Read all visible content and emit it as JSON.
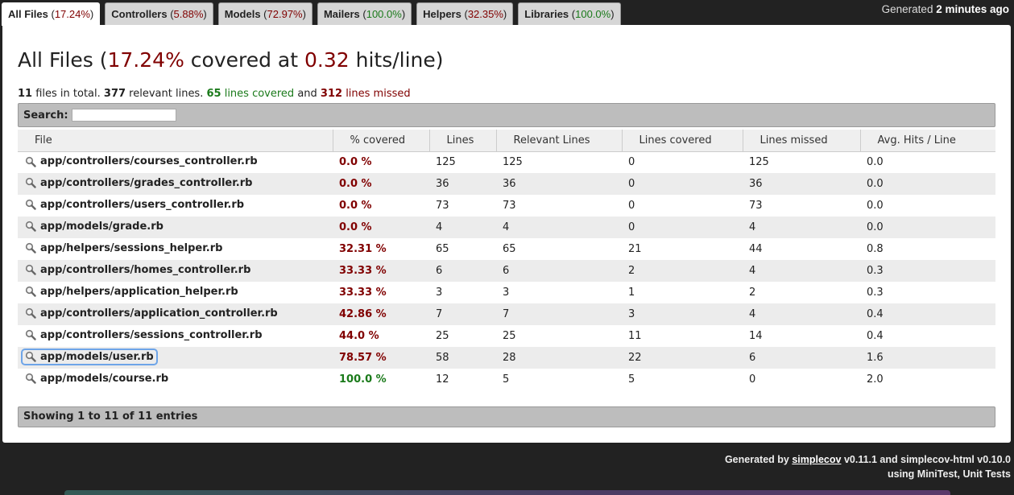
{
  "tabs": [
    {
      "label": "All Files",
      "pct": "17.24%",
      "status": "red",
      "active": true
    },
    {
      "label": "Controllers",
      "pct": "5.88%",
      "status": "red",
      "active": false
    },
    {
      "label": "Models",
      "pct": "72.97%",
      "status": "red",
      "active": false
    },
    {
      "label": "Mailers",
      "pct": "100.0%",
      "status": "green",
      "active": false
    },
    {
      "label": "Helpers",
      "pct": "32.35%",
      "status": "red",
      "active": false
    },
    {
      "label": "Libraries",
      "pct": "100.0%",
      "status": "green",
      "active": false
    }
  ],
  "generated_at": {
    "prefix": "Generated",
    "time": "2 minutes ago"
  },
  "title": {
    "prefix": "All Files (",
    "pct": "17.24%",
    "middle": " covered at ",
    "hits": "0.32",
    "suffix": " hits/line)"
  },
  "summary": {
    "files": "11",
    "files_text": " files in total. ",
    "relevant": "377",
    "relevant_text": " relevant lines. ",
    "covered": "65",
    "covered_text": " lines covered",
    "and_text": " and ",
    "missed": "312",
    "missed_text": " lines missed"
  },
  "search": {
    "label": "Search:",
    "value": ""
  },
  "table": {
    "headers": [
      "File",
      "% covered",
      "Lines",
      "Relevant Lines",
      "Lines covered",
      "Lines missed",
      "Avg. Hits / Line"
    ],
    "rows": [
      {
        "file": "app/controllers/courses_controller.rb",
        "pct": "0.0 %",
        "status": "red",
        "lines": "125",
        "relevant": "125",
        "covered": "0",
        "missed": "125",
        "avg": "0.0"
      },
      {
        "file": "app/controllers/grades_controller.rb",
        "pct": "0.0 %",
        "status": "red",
        "lines": "36",
        "relevant": "36",
        "covered": "0",
        "missed": "36",
        "avg": "0.0"
      },
      {
        "file": "app/controllers/users_controller.rb",
        "pct": "0.0 %",
        "status": "red",
        "lines": "73",
        "relevant": "73",
        "covered": "0",
        "missed": "73",
        "avg": "0.0"
      },
      {
        "file": "app/models/grade.rb",
        "pct": "0.0 %",
        "status": "red",
        "lines": "4",
        "relevant": "4",
        "covered": "0",
        "missed": "4",
        "avg": "0.0"
      },
      {
        "file": "app/helpers/sessions_helper.rb",
        "pct": "32.31 %",
        "status": "red",
        "lines": "65",
        "relevant": "65",
        "covered": "21",
        "missed": "44",
        "avg": "0.8"
      },
      {
        "file": "app/controllers/homes_controller.rb",
        "pct": "33.33 %",
        "status": "red",
        "lines": "6",
        "relevant": "6",
        "covered": "2",
        "missed": "4",
        "avg": "0.3"
      },
      {
        "file": "app/helpers/application_helper.rb",
        "pct": "33.33 %",
        "status": "red",
        "lines": "3",
        "relevant": "3",
        "covered": "1",
        "missed": "2",
        "avg": "0.3"
      },
      {
        "file": "app/controllers/application_controller.rb",
        "pct": "42.86 %",
        "status": "red",
        "lines": "7",
        "relevant": "7",
        "covered": "3",
        "missed": "4",
        "avg": "0.4"
      },
      {
        "file": "app/controllers/sessions_controller.rb",
        "pct": "44.0 %",
        "status": "red",
        "lines": "25",
        "relevant": "25",
        "covered": "11",
        "missed": "14",
        "avg": "0.4"
      },
      {
        "file": "app/models/user.rb",
        "pct": "78.57 %",
        "status": "red",
        "lines": "58",
        "relevant": "28",
        "covered": "22",
        "missed": "6",
        "avg": "1.6",
        "focused": true
      },
      {
        "file": "app/models/course.rb",
        "pct": "100.0 %",
        "status": "green",
        "lines": "12",
        "relevant": "5",
        "covered": "5",
        "missed": "0",
        "avg": "2.0"
      }
    ]
  },
  "footer_info": "Showing 1 to 11 of 11 entries",
  "credits": {
    "line1_prefix": "Generated by ",
    "link": "simplecov",
    "line1_suffix": " v0.11.1 and simplecov-html v0.10.0",
    "line2": "using MiniTest, Unit Tests"
  },
  "icons": {
    "file_link": "magnifier-icon"
  },
  "colors": {
    "red": "#800000",
    "green": "#1a7a1a",
    "background": "#222222",
    "focus_ring": "#6ea5e8"
  }
}
